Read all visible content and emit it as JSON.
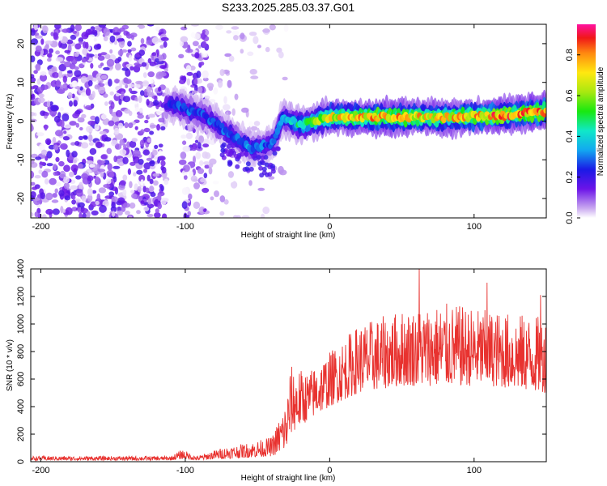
{
  "title": "S233.2025.285.03.37.G01",
  "chart_data": [
    {
      "type": "heatmap",
      "name": "spectrogram",
      "xlabel": "Height of straight line (km)",
      "ylabel": "Frequency (Hz)",
      "xlim": [
        -207,
        150
      ],
      "ylim": [
        -25,
        25
      ],
      "xticks": [
        -200,
        -100,
        0,
        100
      ],
      "yticks": [
        -20,
        -10,
        0,
        10,
        20
      ],
      "colorbar": {
        "label": "Normalized spectral amplitude",
        "range": [
          0.0,
          0.95
        ],
        "ticks": [
          0.0,
          0.2,
          0.4,
          0.6,
          0.8
        ]
      },
      "ridge": {
        "description_points": [
          {
            "x": -113,
            "y": 4,
            "amp": 0.25
          },
          {
            "x": -105,
            "y": 4,
            "amp": 0.3
          },
          {
            "x": -85,
            "y": 1,
            "amp": 0.3
          },
          {
            "x": -70,
            "y": -3,
            "amp": 0.3
          },
          {
            "x": -55,
            "y": -7,
            "amp": 0.35
          },
          {
            "x": -40,
            "y": -6,
            "amp": 0.3
          },
          {
            "x": -32,
            "y": 1,
            "amp": 0.35
          },
          {
            "x": -20,
            "y": -1,
            "amp": 0.5
          },
          {
            "x": 0,
            "y": 1,
            "amp": 0.75
          },
          {
            "x": 30,
            "y": 1,
            "amp": 0.85
          },
          {
            "x": 60,
            "y": 1,
            "amp": 0.8
          },
          {
            "x": 90,
            "y": 1,
            "amp": 0.8
          },
          {
            "x": 120,
            "y": 1.5,
            "amp": 0.9
          },
          {
            "x": 150,
            "y": 2.5,
            "amp": 0.85
          }
        ]
      }
    },
    {
      "type": "line",
      "name": "snr",
      "xlabel": "Height of straight line (km)",
      "ylabel": "SNR (10 * v/v)",
      "xlim": [
        -207,
        150
      ],
      "ylim": [
        0,
        1400
      ],
      "xticks": [
        -200,
        -100,
        0,
        100
      ],
      "yticks": [
        0,
        200,
        400,
        600,
        800,
        1000,
        1200,
        1400
      ],
      "color": "#e8322f",
      "envelope": [
        {
          "x": -207,
          "lo": 10,
          "hi": 40
        },
        {
          "x": -110,
          "lo": 10,
          "hi": 40
        },
        {
          "x": -102,
          "lo": 20,
          "hi": 90
        },
        {
          "x": -92,
          "lo": 10,
          "hi": 40
        },
        {
          "x": -75,
          "lo": 20,
          "hi": 100
        },
        {
          "x": -55,
          "lo": 30,
          "hi": 140
        },
        {
          "x": -40,
          "lo": 40,
          "hi": 180
        },
        {
          "x": -30,
          "lo": 80,
          "hi": 450
        },
        {
          "x": -27,
          "lo": 200,
          "hi": 700
        },
        {
          "x": -15,
          "lo": 300,
          "hi": 650
        },
        {
          "x": 0,
          "lo": 400,
          "hi": 800
        },
        {
          "x": 20,
          "lo": 500,
          "hi": 1000
        },
        {
          "x": 50,
          "lo": 550,
          "hi": 1100
        },
        {
          "x": 80,
          "lo": 550,
          "hi": 1150
        },
        {
          "x": 110,
          "lo": 550,
          "hi": 1100
        },
        {
          "x": 150,
          "lo": 500,
          "hi": 1050
        }
      ],
      "peak_annotations": [
        {
          "x": 62,
          "y": 1400
        },
        {
          "x": 109,
          "y": 1300
        },
        {
          "x": 146,
          "y": 1210
        }
      ]
    }
  ]
}
